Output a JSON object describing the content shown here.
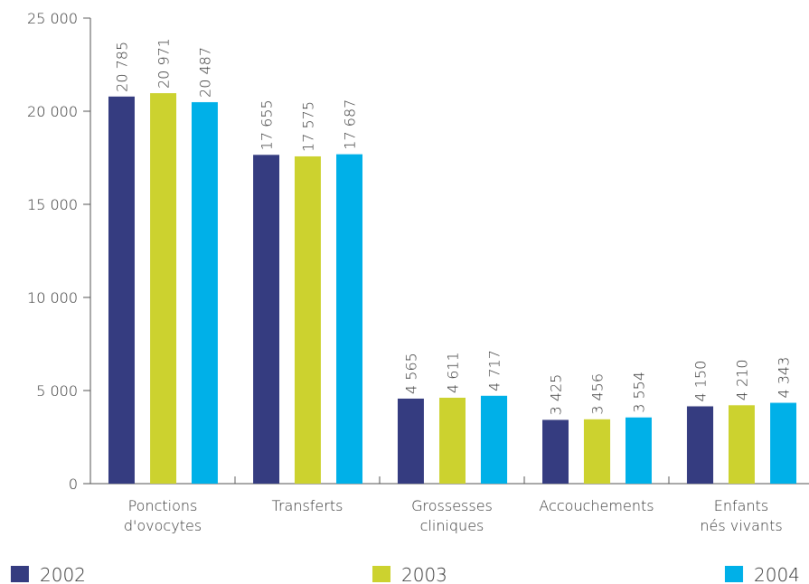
{
  "chart_data": {
    "type": "bar",
    "categories": [
      "Ponctions\nd'ovocytes",
      "Transferts",
      "Grossesses\ncliniques",
      "Accouchements",
      "Enfants\nnés vivants"
    ],
    "series": [
      {
        "name": "2002",
        "color": "#353c80",
        "values": [
          20785,
          17655,
          4565,
          3425,
          4150
        ],
        "value_labels": [
          "20 785",
          "17 655",
          "4 565",
          "3 425",
          "4 150"
        ]
      },
      {
        "name": "2003",
        "color": "#ccd22f",
        "values": [
          20971,
          17575,
          4611,
          3456,
          4210
        ],
        "value_labels": [
          "20 971",
          "17 575",
          "4 611",
          "3 456",
          "4 210"
        ]
      },
      {
        "name": "2004",
        "color": "#00b0e8",
        "values": [
          20487,
          17687,
          4717,
          3554,
          4343
        ],
        "value_labels": [
          "20 487",
          "17 687",
          "4 717",
          "3 554",
          "4 343"
        ]
      }
    ],
    "ylim": [
      0,
      25000
    ],
    "yticks": [
      0,
      {
        "value": 5000,
        "label": "5 000"
      },
      {
        "value": 10000,
        "label": "10 000"
      },
      {
        "value": 15000,
        "label": "15 000"
      },
      {
        "value": 20000,
        "label": "20 000"
      },
      {
        "value": 25000,
        "label": "25 000"
      }
    ]
  }
}
